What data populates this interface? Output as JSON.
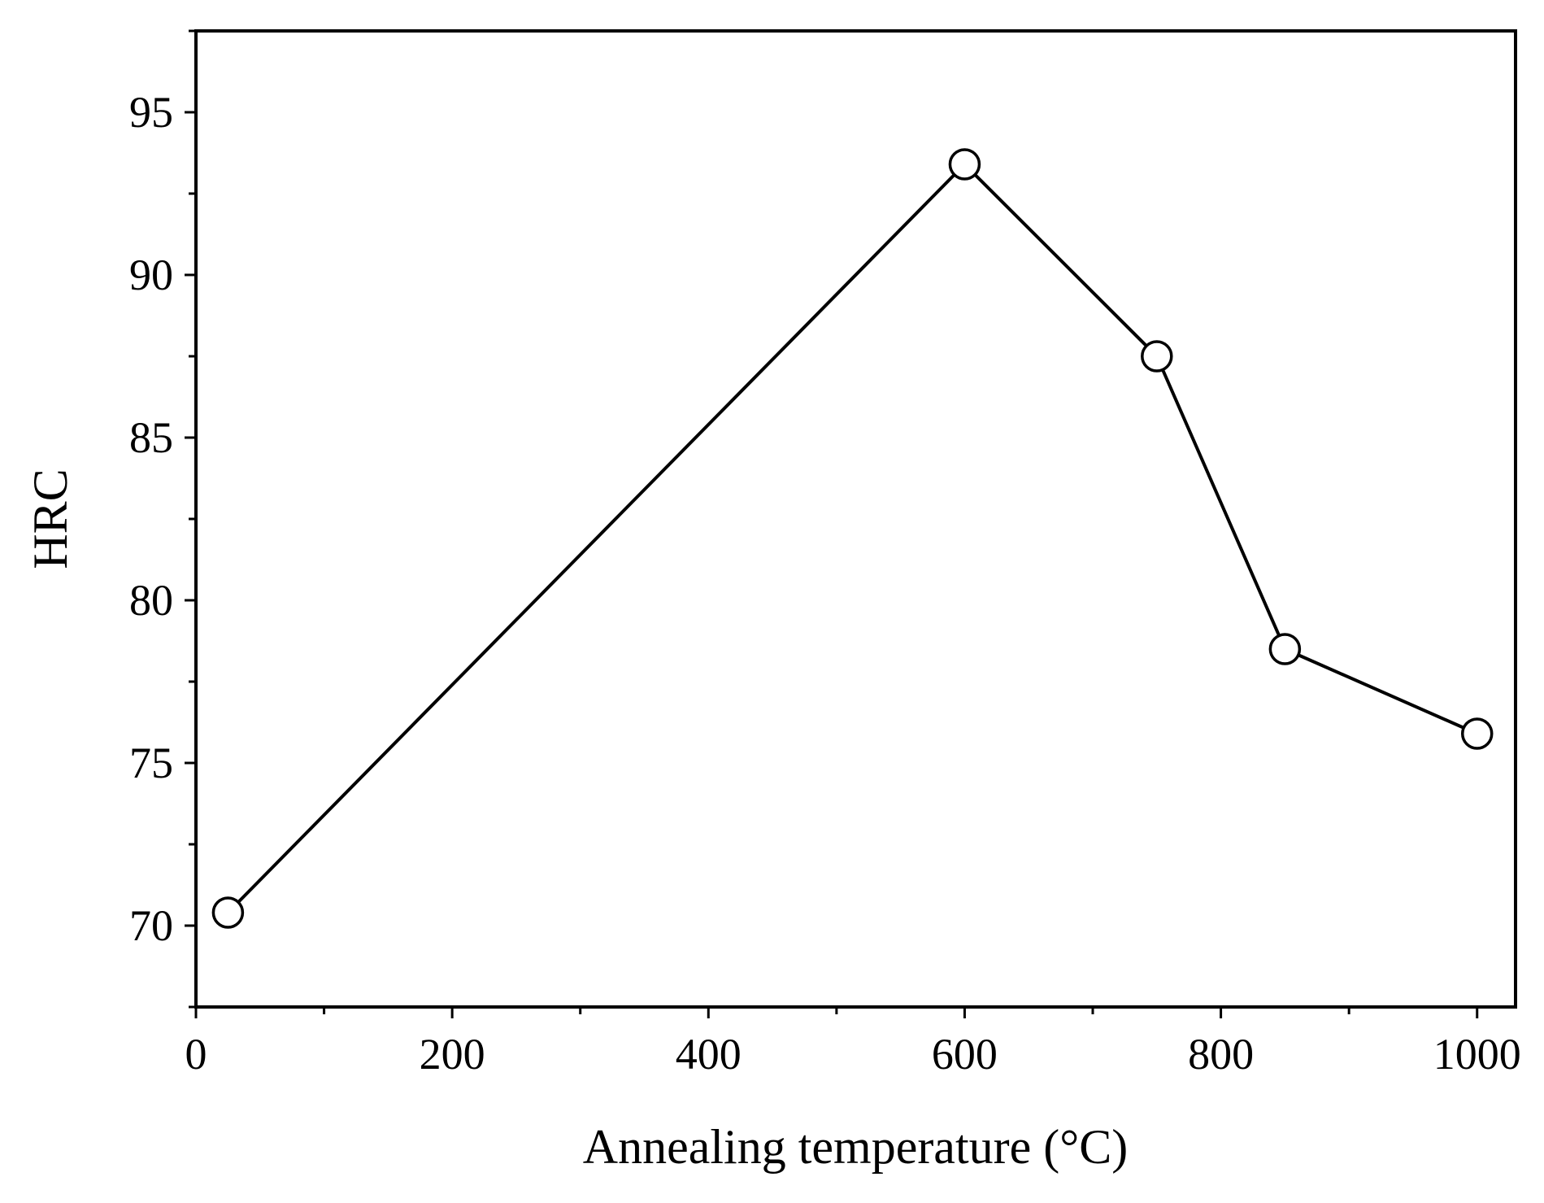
{
  "chart_data": {
    "type": "line",
    "title": "",
    "xlabel": "Annealing temperature (°C)",
    "ylabel": "HRC",
    "xlim": [
      0,
      1030
    ],
    "ylim": [
      67.5,
      97.5
    ],
    "x_major_ticks": [
      0,
      200,
      400,
      600,
      800,
      1000
    ],
    "x_minor_ticks": [
      100,
      300,
      500,
      700,
      900
    ],
    "y_major_ticks": [
      70,
      75,
      80,
      85,
      90,
      95
    ],
    "y_minor_ticks": [
      67.5,
      72.5,
      77.5,
      82.5,
      87.5,
      92.5,
      97.5
    ],
    "x_tick_labels": [
      "0",
      "200",
      "400",
      "600",
      "800",
      "1000"
    ],
    "y_tick_labels": [
      "70",
      "75",
      "80",
      "85",
      "90",
      "95"
    ],
    "grid": false,
    "series": [
      {
        "name": "HRC",
        "marker": "open-circle",
        "color": "#000000",
        "x": [
          25,
          600,
          750,
          850,
          1000
        ],
        "y": [
          70.4,
          93.4,
          87.5,
          78.5,
          75.9
        ]
      }
    ]
  }
}
